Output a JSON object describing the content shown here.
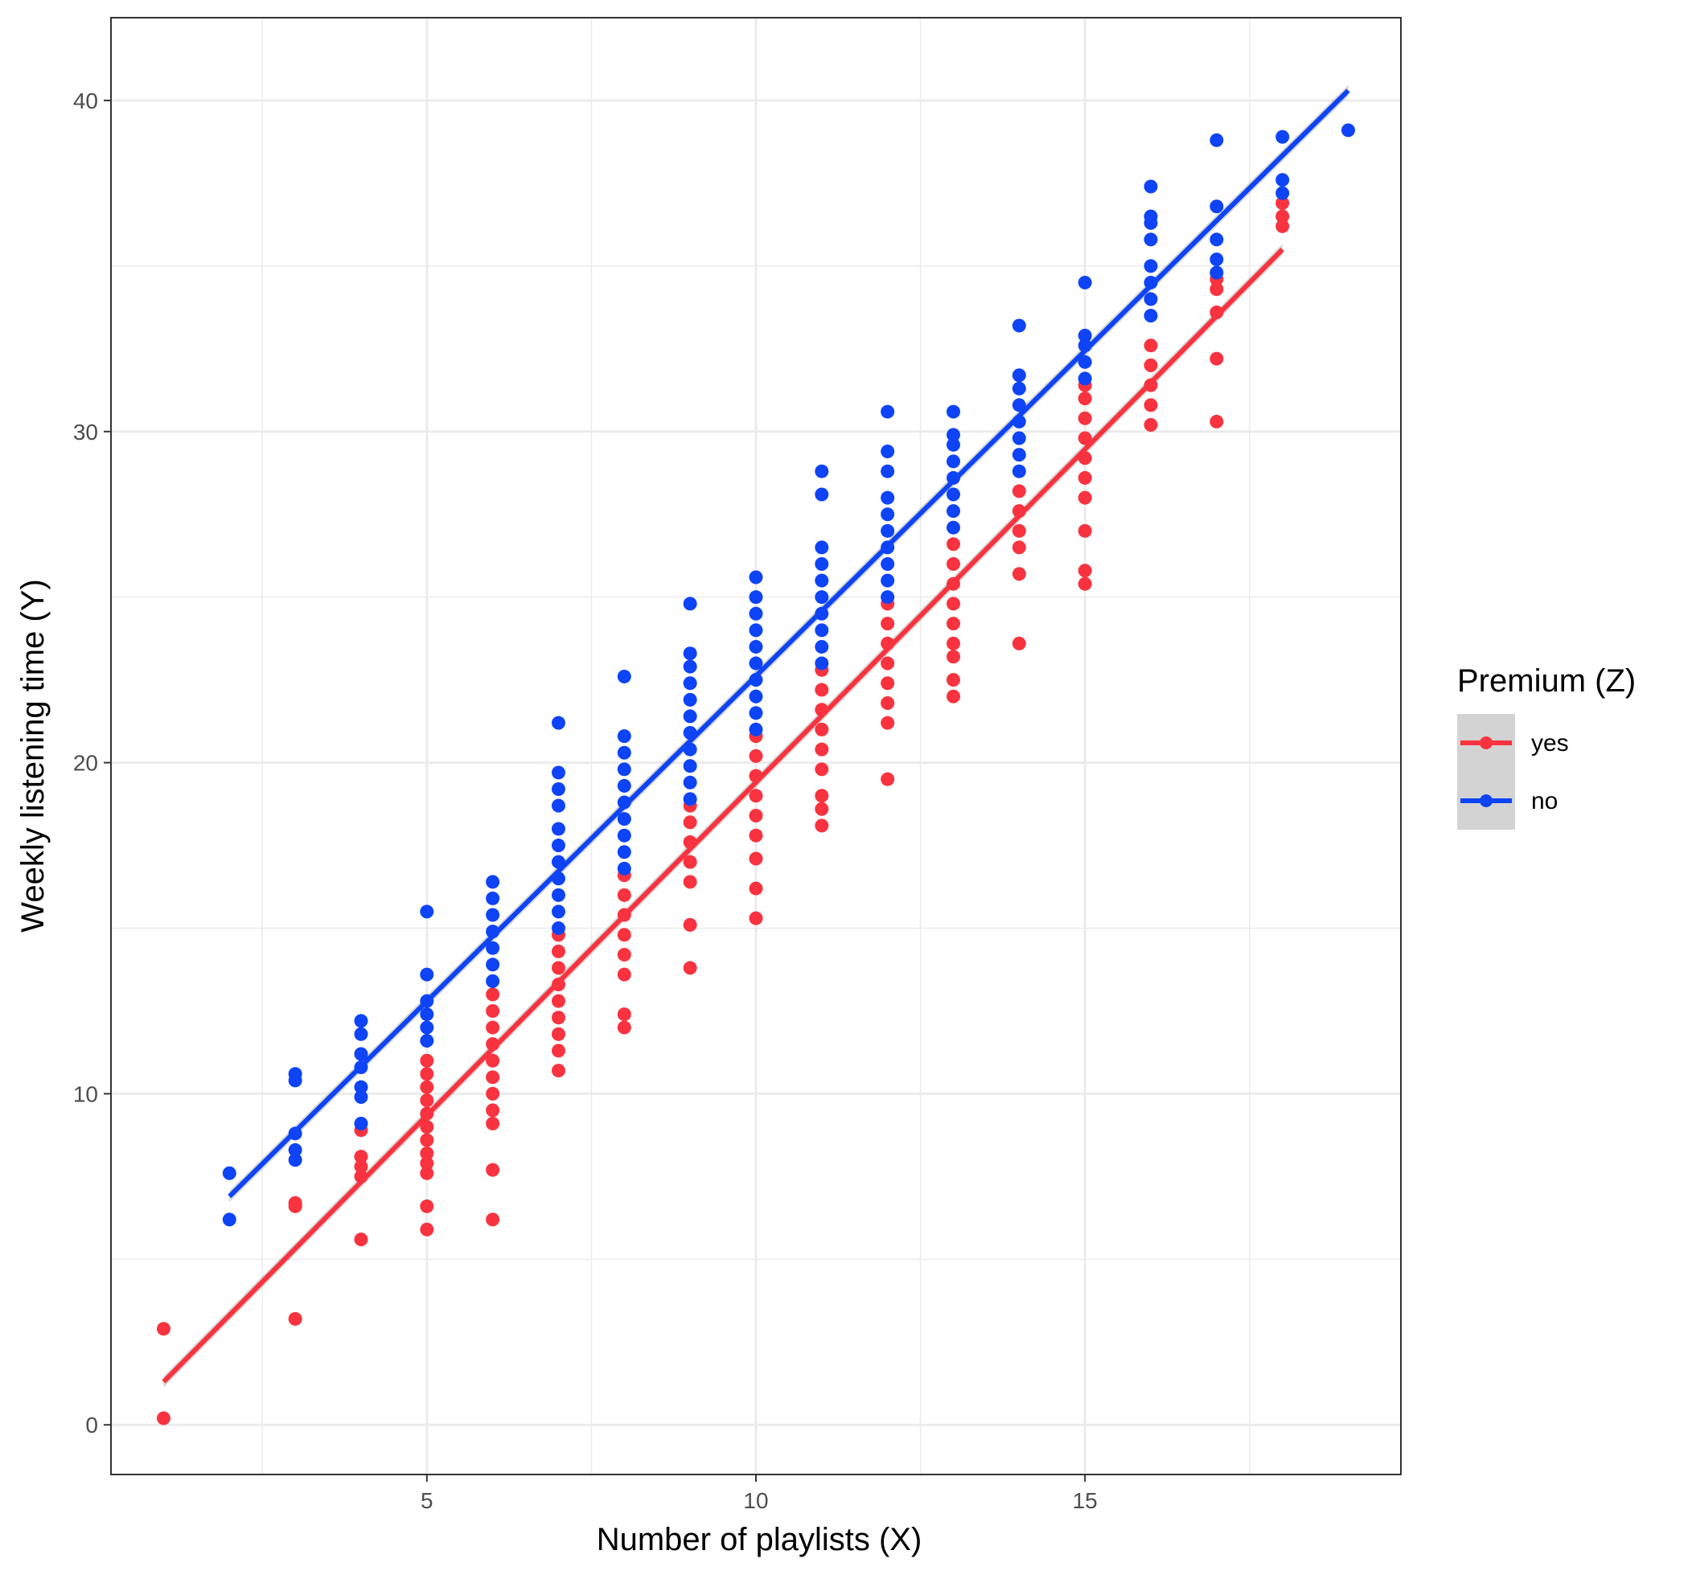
{
  "chart_data": {
    "type": "scatter",
    "xlabel": "Number of playlists (X)",
    "ylabel": "Weekly listening time (Y)",
    "xlim": [
      0.2,
      19.8
    ],
    "ylim": [
      -1.5,
      42.5
    ],
    "x_ticks": [
      5,
      10,
      15
    ],
    "y_ticks": [
      0,
      10,
      20,
      30,
      40
    ],
    "grid": true,
    "legend": {
      "title": "Premium (Z)",
      "placement": "right"
    },
    "series": [
      {
        "name": "yes",
        "color": "#f8333f",
        "fit": {
          "x": [
            1,
            18
          ],
          "y": [
            1.3,
            35.5
          ]
        },
        "points": [
          {
            "x": 1,
            "y": 0.2
          },
          {
            "x": 1,
            "y": 2.9
          },
          {
            "x": 3,
            "y": 3.2
          },
          {
            "x": 3,
            "y": 6.6
          },
          {
            "x": 3,
            "y": 6.7
          },
          {
            "x": 4,
            "y": 5.6
          },
          {
            "x": 4,
            "y": 7.5
          },
          {
            "x": 4,
            "y": 7.8
          },
          {
            "x": 4,
            "y": 8.1
          },
          {
            "x": 4,
            "y": 8.9
          },
          {
            "x": 5,
            "y": 5.9
          },
          {
            "x": 5,
            "y": 6.6
          },
          {
            "x": 5,
            "y": 7.6
          },
          {
            "x": 5,
            "y": 7.9
          },
          {
            "x": 5,
            "y": 8.2
          },
          {
            "x": 5,
            "y": 8.6
          },
          {
            "x": 5,
            "y": 9.0
          },
          {
            "x": 5,
            "y": 9.4
          },
          {
            "x": 5,
            "y": 9.8
          },
          {
            "x": 5,
            "y": 10.2
          },
          {
            "x": 5,
            "y": 10.6
          },
          {
            "x": 5,
            "y": 11.0
          },
          {
            "x": 6,
            "y": 6.2
          },
          {
            "x": 6,
            "y": 7.7
          },
          {
            "x": 6,
            "y": 9.1
          },
          {
            "x": 6,
            "y": 9.5
          },
          {
            "x": 6,
            "y": 10.0
          },
          {
            "x": 6,
            "y": 10.5
          },
          {
            "x": 6,
            "y": 11.0
          },
          {
            "x": 6,
            "y": 11.5
          },
          {
            "x": 6,
            "y": 12.0
          },
          {
            "x": 6,
            "y": 12.5
          },
          {
            "x": 6,
            "y": 13.0
          },
          {
            "x": 7,
            "y": 10.7
          },
          {
            "x": 7,
            "y": 11.3
          },
          {
            "x": 7,
            "y": 11.8
          },
          {
            "x": 7,
            "y": 12.3
          },
          {
            "x": 7,
            "y": 12.8
          },
          {
            "x": 7,
            "y": 13.3
          },
          {
            "x": 7,
            "y": 13.8
          },
          {
            "x": 7,
            "y": 14.3
          },
          {
            "x": 7,
            "y": 14.8
          },
          {
            "x": 8,
            "y": 12.0
          },
          {
            "x": 8,
            "y": 12.4
          },
          {
            "x": 8,
            "y": 13.6
          },
          {
            "x": 8,
            "y": 14.2
          },
          {
            "x": 8,
            "y": 14.8
          },
          {
            "x": 8,
            "y": 15.4
          },
          {
            "x": 8,
            "y": 16.0
          },
          {
            "x": 8,
            "y": 16.6
          },
          {
            "x": 9,
            "y": 13.8
          },
          {
            "x": 9,
            "y": 15.1
          },
          {
            "x": 9,
            "y": 16.4
          },
          {
            "x": 9,
            "y": 17.0
          },
          {
            "x": 9,
            "y": 17.6
          },
          {
            "x": 9,
            "y": 18.2
          },
          {
            "x": 9,
            "y": 18.7
          },
          {
            "x": 10,
            "y": 15.3
          },
          {
            "x": 10,
            "y": 16.2
          },
          {
            "x": 10,
            "y": 17.1
          },
          {
            "x": 10,
            "y": 17.8
          },
          {
            "x": 10,
            "y": 18.4
          },
          {
            "x": 10,
            "y": 19.0
          },
          {
            "x": 10,
            "y": 19.6
          },
          {
            "x": 10,
            "y": 20.2
          },
          {
            "x": 10,
            "y": 20.8
          },
          {
            "x": 11,
            "y": 18.1
          },
          {
            "x": 11,
            "y": 18.6
          },
          {
            "x": 11,
            "y": 19.0
          },
          {
            "x": 11,
            "y": 19.8
          },
          {
            "x": 11,
            "y": 20.4
          },
          {
            "x": 11,
            "y": 21.0
          },
          {
            "x": 11,
            "y": 21.6
          },
          {
            "x": 11,
            "y": 22.2
          },
          {
            "x": 11,
            "y": 22.8
          },
          {
            "x": 12,
            "y": 19.5
          },
          {
            "x": 12,
            "y": 21.2
          },
          {
            "x": 12,
            "y": 21.8
          },
          {
            "x": 12,
            "y": 22.4
          },
          {
            "x": 12,
            "y": 23.0
          },
          {
            "x": 12,
            "y": 23.6
          },
          {
            "x": 12,
            "y": 24.2
          },
          {
            "x": 12,
            "y": 24.8
          },
          {
            "x": 13,
            "y": 22.0
          },
          {
            "x": 13,
            "y": 22.5
          },
          {
            "x": 13,
            "y": 23.2
          },
          {
            "x": 13,
            "y": 23.6
          },
          {
            "x": 13,
            "y": 24.2
          },
          {
            "x": 13,
            "y": 24.8
          },
          {
            "x": 13,
            "y": 25.4
          },
          {
            "x": 13,
            "y": 26.0
          },
          {
            "x": 13,
            "y": 26.6
          },
          {
            "x": 14,
            "y": 23.6
          },
          {
            "x": 14,
            "y": 25.7
          },
          {
            "x": 14,
            "y": 26.5
          },
          {
            "x": 14,
            "y": 27.0
          },
          {
            "x": 14,
            "y": 27.6
          },
          {
            "x": 14,
            "y": 28.2
          },
          {
            "x": 15,
            "y": 25.4
          },
          {
            "x": 15,
            "y": 25.8
          },
          {
            "x": 15,
            "y": 27.0
          },
          {
            "x": 15,
            "y": 28.0
          },
          {
            "x": 15,
            "y": 28.6
          },
          {
            "x": 15,
            "y": 29.2
          },
          {
            "x": 15,
            "y": 29.8
          },
          {
            "x": 15,
            "y": 30.4
          },
          {
            "x": 15,
            "y": 31.0
          },
          {
            "x": 15,
            "y": 31.4
          },
          {
            "x": 16,
            "y": 30.2
          },
          {
            "x": 16,
            "y": 30.8
          },
          {
            "x": 16,
            "y": 31.4
          },
          {
            "x": 16,
            "y": 32.0
          },
          {
            "x": 16,
            "y": 32.6
          },
          {
            "x": 17,
            "y": 30.3
          },
          {
            "x": 17,
            "y": 32.2
          },
          {
            "x": 17,
            "y": 33.6
          },
          {
            "x": 17,
            "y": 34.3
          },
          {
            "x": 17,
            "y": 34.6
          },
          {
            "x": 18,
            "y": 36.2
          },
          {
            "x": 18,
            "y": 36.5
          },
          {
            "x": 18,
            "y": 36.9
          }
        ]
      },
      {
        "name": "no",
        "color": "#0e44f5",
        "fit": {
          "x": [
            2,
            19
          ],
          "y": [
            6.9,
            40.3
          ]
        },
        "points": [
          {
            "x": 2,
            "y": 6.2
          },
          {
            "x": 2,
            "y": 7.6
          },
          {
            "x": 3,
            "y": 8.0
          },
          {
            "x": 3,
            "y": 8.3
          },
          {
            "x": 3,
            "y": 8.8
          },
          {
            "x": 3,
            "y": 10.4
          },
          {
            "x": 3,
            "y": 10.6
          },
          {
            "x": 4,
            "y": 9.1
          },
          {
            "x": 4,
            "y": 9.9
          },
          {
            "x": 4,
            "y": 10.2
          },
          {
            "x": 4,
            "y": 10.8
          },
          {
            "x": 4,
            "y": 11.2
          },
          {
            "x": 4,
            "y": 11.8
          },
          {
            "x": 4,
            "y": 12.2
          },
          {
            "x": 5,
            "y": 11.6
          },
          {
            "x": 5,
            "y": 12.0
          },
          {
            "x": 5,
            "y": 12.4
          },
          {
            "x": 5,
            "y": 12.8
          },
          {
            "x": 5,
            "y": 13.6
          },
          {
            "x": 5,
            "y": 15.5
          },
          {
            "x": 6,
            "y": 13.4
          },
          {
            "x": 6,
            "y": 13.9
          },
          {
            "x": 6,
            "y": 14.4
          },
          {
            "x": 6,
            "y": 14.9
          },
          {
            "x": 6,
            "y": 15.4
          },
          {
            "x": 6,
            "y": 15.9
          },
          {
            "x": 6,
            "y": 16.4
          },
          {
            "x": 7,
            "y": 15.0
          },
          {
            "x": 7,
            "y": 15.5
          },
          {
            "x": 7,
            "y": 16.0
          },
          {
            "x": 7,
            "y": 16.5
          },
          {
            "x": 7,
            "y": 17.0
          },
          {
            "x": 7,
            "y": 17.5
          },
          {
            "x": 7,
            "y": 18.0
          },
          {
            "x": 7,
            "y": 18.7
          },
          {
            "x": 7,
            "y": 19.2
          },
          {
            "x": 7,
            "y": 19.7
          },
          {
            "x": 7,
            "y": 21.2
          },
          {
            "x": 8,
            "y": 16.8
          },
          {
            "x": 8,
            "y": 17.3
          },
          {
            "x": 8,
            "y": 17.8
          },
          {
            "x": 8,
            "y": 18.3
          },
          {
            "x": 8,
            "y": 18.8
          },
          {
            "x": 8,
            "y": 19.3
          },
          {
            "x": 8,
            "y": 19.8
          },
          {
            "x": 8,
            "y": 20.3
          },
          {
            "x": 8,
            "y": 20.8
          },
          {
            "x": 8,
            "y": 22.6
          },
          {
            "x": 9,
            "y": 18.9
          },
          {
            "x": 9,
            "y": 19.4
          },
          {
            "x": 9,
            "y": 19.9
          },
          {
            "x": 9,
            "y": 20.4
          },
          {
            "x": 9,
            "y": 20.9
          },
          {
            "x": 9,
            "y": 21.4
          },
          {
            "x": 9,
            "y": 21.9
          },
          {
            "x": 9,
            "y": 22.4
          },
          {
            "x": 9,
            "y": 22.9
          },
          {
            "x": 9,
            "y": 23.3
          },
          {
            "x": 9,
            "y": 24.8
          },
          {
            "x": 10,
            "y": 21.0
          },
          {
            "x": 10,
            "y": 21.5
          },
          {
            "x": 10,
            "y": 22.0
          },
          {
            "x": 10,
            "y": 22.5
          },
          {
            "x": 10,
            "y": 23.0
          },
          {
            "x": 10,
            "y": 23.5
          },
          {
            "x": 10,
            "y": 24.0
          },
          {
            "x": 10,
            "y": 24.5
          },
          {
            "x": 10,
            "y": 25.0
          },
          {
            "x": 10,
            "y": 25.6
          },
          {
            "x": 11,
            "y": 23.0
          },
          {
            "x": 11,
            "y": 23.5
          },
          {
            "x": 11,
            "y": 24.0
          },
          {
            "x": 11,
            "y": 24.5
          },
          {
            "x": 11,
            "y": 25.0
          },
          {
            "x": 11,
            "y": 25.5
          },
          {
            "x": 11,
            "y": 26.0
          },
          {
            "x": 11,
            "y": 26.5
          },
          {
            "x": 11,
            "y": 28.1
          },
          {
            "x": 11,
            "y": 28.8
          },
          {
            "x": 12,
            "y": 25.0
          },
          {
            "x": 12,
            "y": 25.5
          },
          {
            "x": 12,
            "y": 26.0
          },
          {
            "x": 12,
            "y": 26.5
          },
          {
            "x": 12,
            "y": 27.0
          },
          {
            "x": 12,
            "y": 27.5
          },
          {
            "x": 12,
            "y": 28.0
          },
          {
            "x": 12,
            "y": 28.8
          },
          {
            "x": 12,
            "y": 29.4
          },
          {
            "x": 12,
            "y": 30.6
          },
          {
            "x": 13,
            "y": 27.1
          },
          {
            "x": 13,
            "y": 27.6
          },
          {
            "x": 13,
            "y": 28.1
          },
          {
            "x": 13,
            "y": 28.6
          },
          {
            "x": 13,
            "y": 29.1
          },
          {
            "x": 13,
            "y": 29.6
          },
          {
            "x": 13,
            "y": 29.9
          },
          {
            "x": 13,
            "y": 30.6
          },
          {
            "x": 14,
            "y": 28.8
          },
          {
            "x": 14,
            "y": 29.3
          },
          {
            "x": 14,
            "y": 29.8
          },
          {
            "x": 14,
            "y": 30.3
          },
          {
            "x": 14,
            "y": 30.8
          },
          {
            "x": 14,
            "y": 31.3
          },
          {
            "x": 14,
            "y": 31.7
          },
          {
            "x": 14,
            "y": 33.2
          },
          {
            "x": 15,
            "y": 31.6
          },
          {
            "x": 15,
            "y": 32.1
          },
          {
            "x": 15,
            "y": 32.6
          },
          {
            "x": 15,
            "y": 32.9
          },
          {
            "x": 15,
            "y": 34.5
          },
          {
            "x": 16,
            "y": 33.5
          },
          {
            "x": 16,
            "y": 34.0
          },
          {
            "x": 16,
            "y": 34.5
          },
          {
            "x": 16,
            "y": 35.0
          },
          {
            "x": 16,
            "y": 35.8
          },
          {
            "x": 16,
            "y": 36.3
          },
          {
            "x": 16,
            "y": 36.5
          },
          {
            "x": 16,
            "y": 37.4
          },
          {
            "x": 17,
            "y": 34.8
          },
          {
            "x": 17,
            "y": 35.2
          },
          {
            "x": 17,
            "y": 35.8
          },
          {
            "x": 17,
            "y": 36.8
          },
          {
            "x": 17,
            "y": 38.8
          },
          {
            "x": 18,
            "y": 37.2
          },
          {
            "x": 18,
            "y": 37.6
          },
          {
            "x": 18,
            "y": 38.9
          },
          {
            "x": 19,
            "y": 39.1
          }
        ]
      }
    ]
  }
}
